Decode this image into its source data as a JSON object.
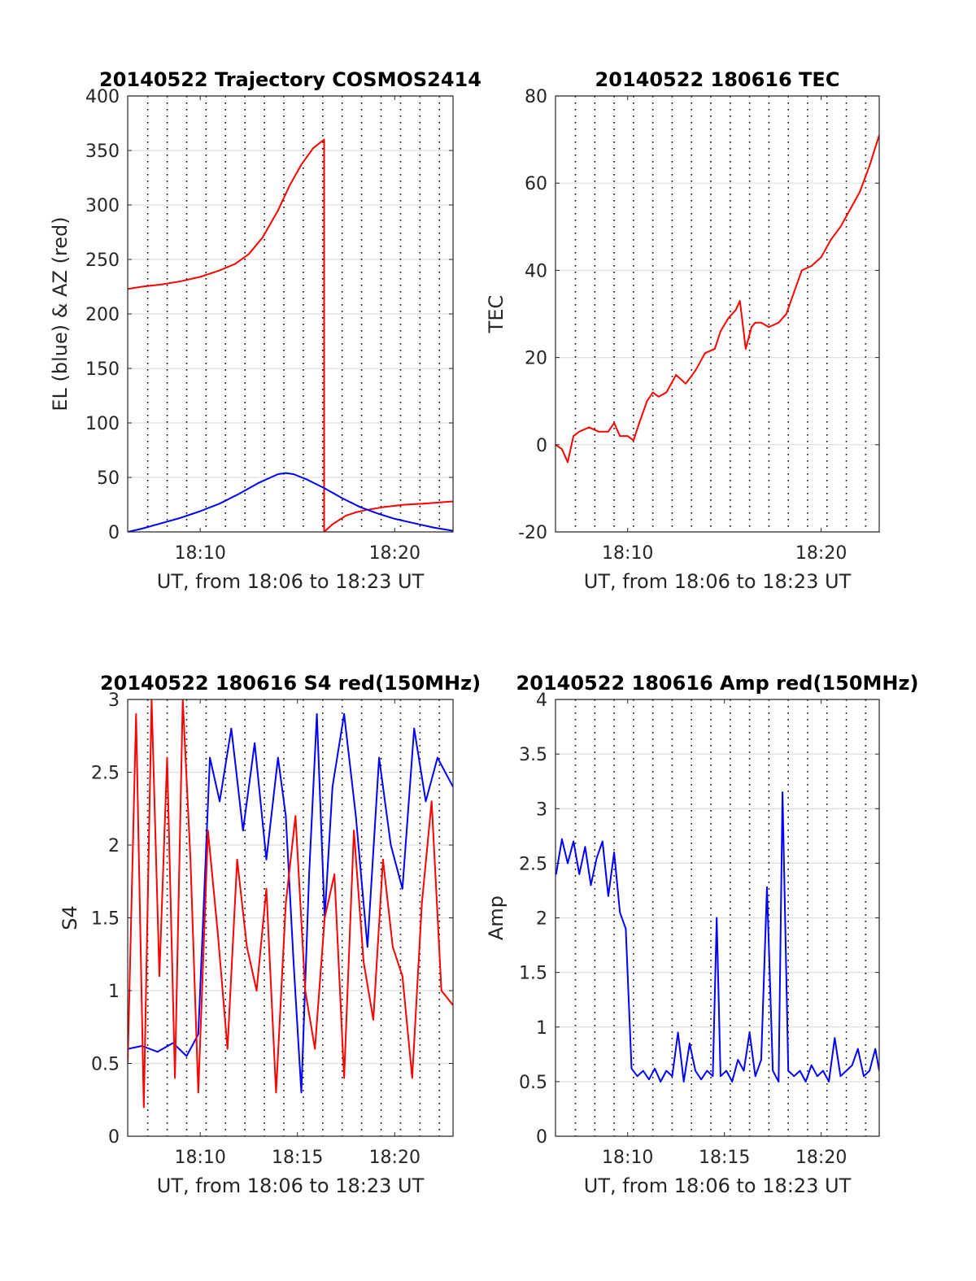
{
  "chart_data": [
    {
      "id": "trajectory",
      "type": "line",
      "title": "20140522 Trajectory COSMOS2414",
      "xlabel": "UT, from 18:06 to 18:23 UT",
      "ylabel": "EL (blue) & AZ (red)",
      "x_unit": "minutes after 18:00 UT",
      "xlim": [
        6.27,
        23.0
      ],
      "ylim": [
        0,
        400
      ],
      "yticks": [
        0,
        50,
        100,
        150,
        200,
        250,
        300,
        350,
        400
      ],
      "xticks": [
        {
          "x": 10,
          "label": "18:10"
        },
        {
          "x": 20,
          "label": "18:20"
        }
      ],
      "grid": true,
      "series": [
        {
          "key": "az",
          "color": "#ff0000",
          "x": [
            6.27,
            7.0,
            8.0,
            9.0,
            10.0,
            11.0,
            11.8,
            12.5,
            13.2,
            14.0,
            14.6,
            15.2,
            15.8,
            16.3,
            16.37,
            16.37,
            16.8,
            17.5,
            18.0,
            18.5,
            19.5,
            20.5,
            21.5,
            22.3,
            23.0
          ],
          "y": [
            223,
            225,
            227,
            230,
            234,
            240,
            246,
            255,
            270,
            295,
            318,
            337,
            352,
            359,
            360,
            0,
            7,
            15,
            18,
            20,
            23,
            25,
            26,
            27,
            28
          ]
        },
        {
          "key": "el",
          "color": "#0000ff",
          "x": [
            6.27,
            7.0,
            8.0,
            9.0,
            10.0,
            11.0,
            12.0,
            13.0,
            14.0,
            14.4,
            14.8,
            15.5,
            16.4,
            17.3,
            18.2,
            19.1,
            20.0,
            21.0,
            22.0,
            23.0
          ],
          "y": [
            0,
            3,
            8,
            13,
            19,
            26,
            35,
            45,
            53,
            54,
            53,
            48,
            40,
            31,
            23,
            17,
            12,
            8,
            4,
            1
          ]
        }
      ]
    },
    {
      "id": "tec",
      "type": "line",
      "title": "20140522 180616 TEC",
      "xlabel": "UT, from 18:06 to 18:23 UT",
      "ylabel": "TEC",
      "x_unit": "minutes after 18:00 UT",
      "xlim": [
        6.27,
        23.0
      ],
      "ylim": [
        -20,
        80
      ],
      "yticks": [
        -20,
        0,
        20,
        40,
        60,
        80
      ],
      "xticks": [
        {
          "x": 10,
          "label": "18:10"
        },
        {
          "x": 20,
          "label": "18:20"
        }
      ],
      "grid": true,
      "series": [
        {
          "key": "tec",
          "color": "#ff0000",
          "x": [
            6.27,
            6.6,
            6.9,
            7.2,
            7.5,
            8.0,
            8.5,
            9.0,
            9.3,
            9.6,
            10.0,
            10.3,
            10.6,
            11.0,
            11.3,
            11.6,
            12.0,
            12.5,
            13.0,
            13.5,
            14.0,
            14.5,
            14.8,
            15.2,
            15.6,
            15.8,
            16.1,
            16.4,
            16.6,
            16.9,
            17.3,
            17.8,
            18.2,
            18.6,
            19.0,
            19.5,
            20.0,
            20.5,
            21.0,
            21.5,
            22.0,
            22.5,
            23.0
          ],
          "y": [
            0,
            -1,
            -4,
            2,
            3,
            4,
            3,
            3,
            5,
            2,
            2,
            1,
            5,
            10,
            12,
            11,
            12,
            16,
            14,
            17,
            21,
            22,
            26,
            29,
            31,
            33,
            22,
            27,
            28,
            28,
            27,
            28,
            30,
            35,
            40,
            41,
            43,
            47,
            50,
            54,
            58,
            64,
            71
          ]
        }
      ]
    },
    {
      "id": "s4",
      "type": "line",
      "title": "20140522 180616 S4 red(150MHz)",
      "xlabel": "UT, from 18:06 to 18:23 UT",
      "ylabel": "S4",
      "x_unit": "minutes after 18:00 UT",
      "xlim": [
        6.27,
        23.0
      ],
      "ylim": [
        0,
        3
      ],
      "yticks": [
        0,
        0.5,
        1,
        1.5,
        2,
        2.5,
        3
      ],
      "xticks": [
        {
          "x": 10,
          "label": "18:10"
        },
        {
          "x": 15,
          "label": "18:15"
        },
        {
          "x": 20,
          "label": "18:20"
        }
      ],
      "grid": true,
      "series": [
        {
          "key": "s4_blue",
          "color": "#0000ff",
          "x": [
            6.27,
            7.0,
            7.8,
            8.6,
            9.3,
            9.9,
            10.5,
            11.0,
            11.6,
            12.2,
            12.8,
            13.4,
            14.0,
            14.4,
            14.8,
            15.2,
            15.6,
            16.0,
            16.4,
            16.8,
            17.4,
            18.0,
            18.6,
            19.2,
            19.8,
            20.4,
            21.0,
            21.6,
            22.2,
            23.0
          ],
          "y": [
            0.6,
            0.62,
            0.58,
            0.64,
            0.55,
            0.7,
            2.6,
            2.3,
            2.8,
            2.1,
            2.7,
            1.9,
            2.6,
            2.2,
            1.2,
            0.3,
            1.8,
            2.9,
            1.5,
            2.4,
            2.9,
            2.2,
            1.3,
            2.6,
            2.0,
            1.7,
            2.8,
            2.3,
            2.6,
            2.4
          ]
        },
        {
          "key": "s4_red",
          "color": "#ff0000",
          "x": [
            6.27,
            6.7,
            7.1,
            7.5,
            7.9,
            8.3,
            8.7,
            9.1,
            9.5,
            9.9,
            10.4,
            10.9,
            11.4,
            11.9,
            12.4,
            12.9,
            13.4,
            13.9,
            14.4,
            14.9,
            15.4,
            15.9,
            16.4,
            16.9,
            17.4,
            17.9,
            18.4,
            18.9,
            19.4,
            19.9,
            20.4,
            20.9,
            21.4,
            21.9,
            22.4,
            23.0
          ],
          "y": [
            0.5,
            2.9,
            0.2,
            3.0,
            1.1,
            2.6,
            0.4,
            3.0,
            1.9,
            0.3,
            2.1,
            1.4,
            0.6,
            1.9,
            1.3,
            1.0,
            1.7,
            0.3,
            1.6,
            2.2,
            1.0,
            0.6,
            1.5,
            1.8,
            0.4,
            2.1,
            1.2,
            0.8,
            1.9,
            1.3,
            1.1,
            0.4,
            1.6,
            2.3,
            1.0,
            0.9
          ]
        }
      ]
    },
    {
      "id": "amp",
      "type": "line",
      "title": "20140522 180616 Amp red(150MHz)",
      "xlabel": "UT, from 18:06 to 18:23 UT",
      "ylabel": "Amp",
      "x_unit": "minutes after 18:00 UT",
      "xlim": [
        6.27,
        23.0
      ],
      "ylim": [
        0,
        4
      ],
      "yticks": [
        0,
        0.5,
        1,
        1.5,
        2,
        2.5,
        3,
        3.5,
        4
      ],
      "xticks": [
        {
          "x": 10,
          "label": "18:10"
        },
        {
          "x": 15,
          "label": "18:15"
        },
        {
          "x": 20,
          "label": "18:20"
        }
      ],
      "grid": true,
      "series": [
        {
          "key": "amp",
          "color": "#0000ff",
          "x": [
            6.3,
            6.6,
            6.9,
            7.2,
            7.5,
            7.8,
            8.1,
            8.4,
            8.7,
            9.0,
            9.3,
            9.6,
            9.9,
            10.2,
            10.5,
            10.8,
            11.1,
            11.4,
            11.7,
            12.0,
            12.3,
            12.6,
            12.9,
            13.2,
            13.5,
            13.8,
            14.1,
            14.4,
            14.6,
            14.8,
            15.1,
            15.4,
            15.7,
            16.0,
            16.3,
            16.6,
            16.9,
            17.2,
            17.5,
            17.8,
            18.0,
            18.3,
            18.6,
            18.9,
            19.2,
            19.5,
            19.8,
            20.1,
            20.4,
            20.7,
            21.0,
            21.3,
            21.6,
            21.9,
            22.2,
            22.5,
            22.8,
            23.0
          ],
          "y": [
            2.4,
            2.72,
            2.5,
            2.7,
            2.4,
            2.65,
            2.3,
            2.55,
            2.7,
            2.2,
            2.6,
            2.05,
            1.9,
            0.62,
            0.55,
            0.6,
            0.52,
            0.62,
            0.5,
            0.6,
            0.55,
            0.95,
            0.5,
            0.85,
            0.6,
            0.52,
            0.6,
            0.55,
            2.0,
            0.55,
            0.6,
            0.5,
            0.7,
            0.6,
            0.95,
            0.55,
            0.7,
            2.28,
            0.6,
            0.5,
            3.15,
            0.6,
            0.55,
            0.6,
            0.5,
            0.65,
            0.55,
            0.6,
            0.5,
            0.9,
            0.55,
            0.6,
            0.65,
            0.8,
            0.55,
            0.6,
            0.8,
            0.6
          ]
        }
      ]
    }
  ]
}
